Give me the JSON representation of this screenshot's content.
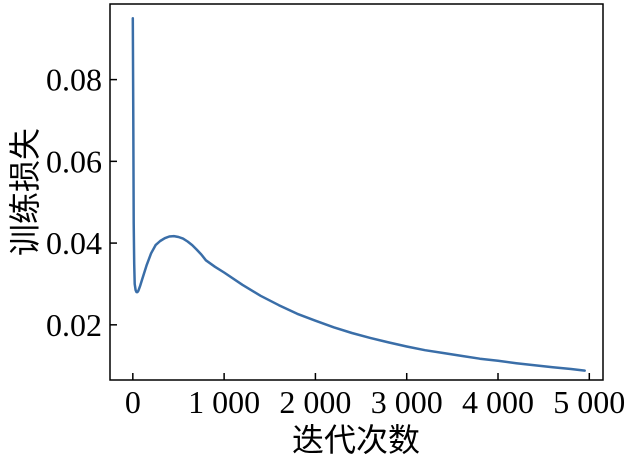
{
  "chart_data": {
    "type": "line",
    "title": "",
    "xlabel": "迭代次数",
    "ylabel": "训练损失",
    "xlim": [
      -250,
      5150
    ],
    "ylim": [
      0.0065,
      0.0985
    ],
    "x_ticks": [
      0,
      1000,
      2000,
      3000,
      4000,
      5000
    ],
    "x_tick_labels": [
      "0",
      "1 000",
      "2 000",
      "3 000",
      "4 000",
      "5 000"
    ],
    "y_ticks": [
      0.02,
      0.04,
      0.06,
      0.08
    ],
    "y_tick_labels": [
      "0.02",
      "0.04",
      "0.06",
      "0.08"
    ],
    "grid": false,
    "line_color": "#3a6ea8",
    "series": [
      {
        "x": [
          0,
          5,
          10,
          15,
          20,
          30,
          40,
          50,
          60,
          80,
          100,
          150,
          200,
          250,
          300,
          350,
          400,
          450,
          500,
          550,
          600,
          650,
          700,
          750,
          800,
          900,
          1000,
          1200,
          1400,
          1600,
          1800,
          2000,
          2200,
          2400,
          2600,
          2800,
          3000,
          3200,
          3400,
          3600,
          3800,
          4000,
          4200,
          4400,
          4600,
          4800,
          4950
        ],
        "y": [
          0.095,
          0.07,
          0.045,
          0.035,
          0.03,
          0.0285,
          0.028,
          0.028,
          0.0283,
          0.0295,
          0.031,
          0.0345,
          0.0375,
          0.0395,
          0.0405,
          0.0412,
          0.0416,
          0.0417,
          0.0415,
          0.0411,
          0.0404,
          0.0395,
          0.0384,
          0.0372,
          0.0358,
          0.0342,
          0.0328,
          0.0298,
          0.0271,
          0.0248,
          0.0227,
          0.021,
          0.0194,
          0.018,
          0.0168,
          0.0157,
          0.0147,
          0.0138,
          0.0131,
          0.0124,
          0.0117,
          0.0112,
          0.0106,
          0.0101,
          0.0096,
          0.0092,
          0.0088
        ]
      }
    ]
  }
}
